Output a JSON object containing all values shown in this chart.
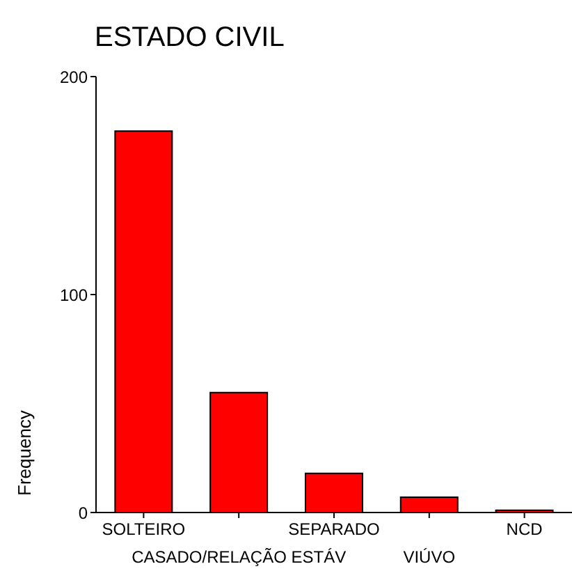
{
  "chart_data": {
    "type": "bar",
    "title": "ESTADO CIVIL",
    "ylabel": "Frequency",
    "categories": [
      "SOLTEIRO",
      "CASADO/RELAÇÃO ESTÁV",
      "SEPARADO",
      "VIÚVO",
      "NCD"
    ],
    "values": [
      175,
      55,
      18,
      7,
      1
    ],
    "color": "#ff0000",
    "ylim": [
      0,
      200
    ],
    "yticks": [
      0,
      100,
      200
    ],
    "grid": false,
    "legend": false
  }
}
